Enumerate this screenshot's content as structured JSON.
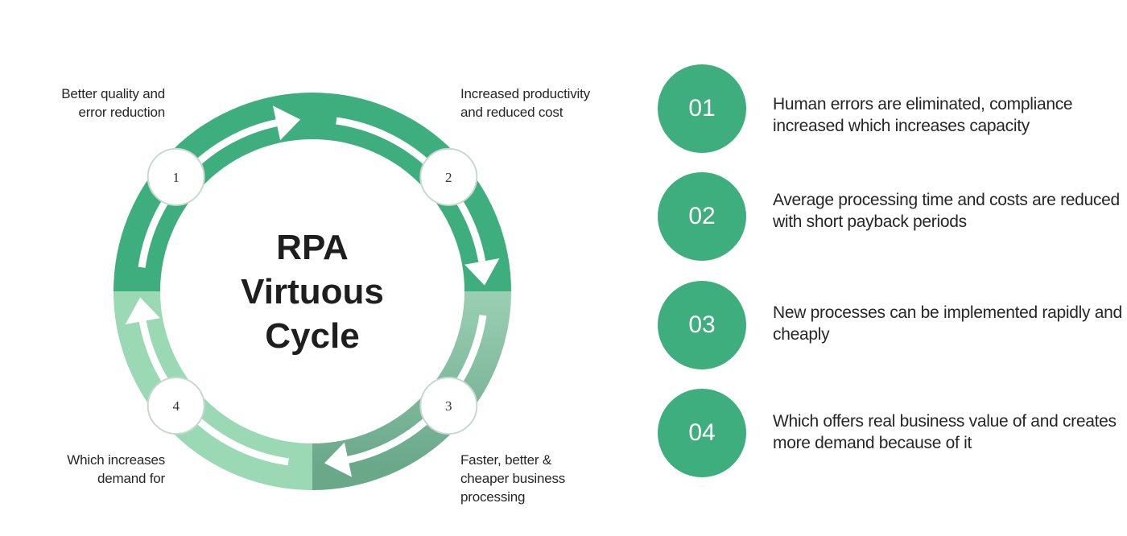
{
  "diagram": {
    "center_title": "RPA\nVirtuous\nCycle",
    "nodes": [
      {
        "number": "1",
        "label": "Better quality and\nerror reduction"
      },
      {
        "number": "2",
        "label": "Increased productivity\nand reduced cost"
      },
      {
        "number": "3",
        "label": "Faster, better &\ncheaper business\nprocessing"
      },
      {
        "number": "4",
        "label": "Which increases\ndemand for"
      }
    ]
  },
  "steps": [
    {
      "number": "01",
      "text": "Human errors are eliminated, compliance increased which increases capacity"
    },
    {
      "number": "02",
      "text": "Average processing time and costs are reduced with short payback periods"
    },
    {
      "number": "03",
      "text": "New processes can be implemented rapidly and cheaply"
    },
    {
      "number": "04",
      "text": "Which offers real business value of and creates more demand because of it"
    }
  ],
  "colors": {
    "green_dark": "#3fae7e",
    "green_mid": "#8ec8ab",
    "green_light": "#9ad9b3",
    "step_circle": "#3fae7e",
    "node_border": "#c7d9cf"
  }
}
